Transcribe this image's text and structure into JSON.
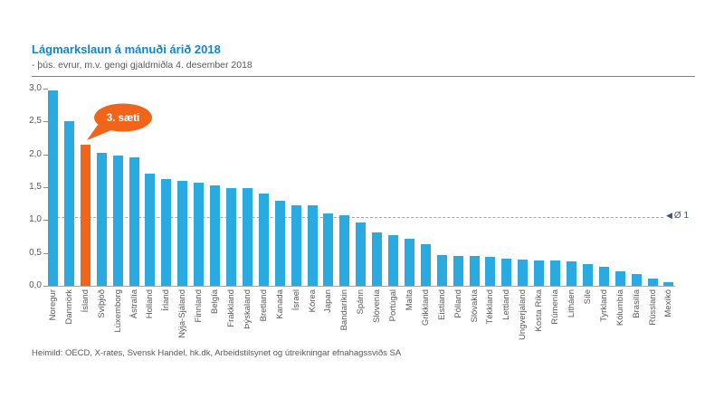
{
  "header": {
    "title": "Lágmarkslaun á mánuði árið 2018",
    "subtitle": "- þús. evrur, m.v. gengi gjaldmiðla 4. desember 2018"
  },
  "footer": {
    "source": "Heimild: OECD, X-rates, Svensk Handel, hk.dk, Arbeidstilsynet og útreikningar efnahagssviðs SA"
  },
  "chart_data": {
    "type": "bar",
    "title": "Lágmarkslaun á mánuði árið 2018",
    "subtitle": "- þús. evrur, m.v. gengi gjaldmiðla 4. desember 2018",
    "unit": "þús. evrur á mánuði",
    "categories": [
      "Noregur",
      "Danmörk",
      "Ísland",
      "Svíþjóð",
      "Lúxemborg",
      "Ástralía",
      "Holland",
      "Írland",
      "Nýja-Sjáland",
      "Finnland",
      "Belgía",
      "Frakkland",
      "Þýskaland",
      "Bretland",
      "Kanada",
      "Ísrael",
      "Kórea",
      "Japan",
      "Bandaríkin",
      "Spánn",
      "Slóvenía",
      "Portúgal",
      "Malta",
      "Grikkland",
      "Eistland",
      "Pólland",
      "Slóvakía",
      "Tékkland",
      "Lettland",
      "Ungverjaland",
      "Kosta Ríka",
      "Rúmenía",
      "Litháen",
      "Síle",
      "Tyrkland",
      "Kólumbía",
      "Brasilía",
      "Rússland",
      "Mexíkó"
    ],
    "values": [
      2.97,
      2.5,
      2.15,
      2.03,
      1.98,
      1.96,
      1.7,
      1.63,
      1.59,
      1.57,
      1.53,
      1.49,
      1.48,
      1.4,
      1.3,
      1.23,
      1.22,
      1.1,
      1.08,
      0.97,
      0.81,
      0.77,
      0.72,
      0.64,
      0.47,
      0.46,
      0.45,
      0.44,
      0.41,
      0.4,
      0.39,
      0.38,
      0.37,
      0.33,
      0.29,
      0.22,
      0.18,
      0.11,
      0.06
    ],
    "highlight": {
      "index": 2,
      "category": "Ísland",
      "callout_label": "3. sæti"
    },
    "average_line": {
      "value": 1.05,
      "label": "Ø 1",
      "arrow": "◀"
    },
    "y_ticks": [
      "0,0",
      "0,5",
      "1,0",
      "1,5",
      "2,0",
      "2,5",
      "3,0"
    ],
    "ylim": [
      0,
      3
    ],
    "grid": false,
    "legend": "none",
    "colors": {
      "bar": "#29ABE2",
      "highlight": "#F26419"
    }
  }
}
